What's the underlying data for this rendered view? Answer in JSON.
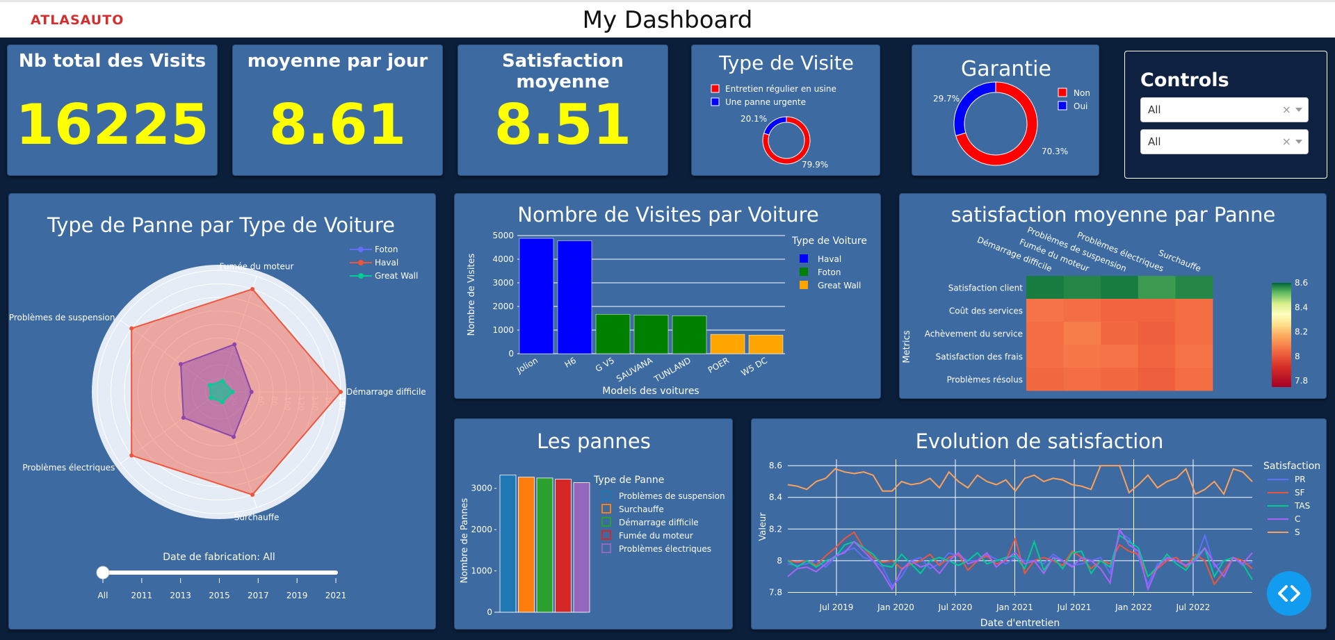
{
  "header": {
    "title": "My Dashboard",
    "logo_text": "ATLASAUTO"
  },
  "kpis": [
    {
      "title": "Nb total des Visits",
      "value": "16225"
    },
    {
      "title": "moyenne par jour",
      "value": "8.61"
    },
    {
      "title": "Satisfaction moyenne",
      "value": "8.51"
    }
  ],
  "type_visite": {
    "title": "Type de Visite",
    "legend": [
      "Entretien régulier en usine",
      "Une panne urgente"
    ],
    "values": [
      79.9,
      20.1
    ],
    "labels": [
      "79.9%",
      "20.1%"
    ],
    "colors": [
      "#ff0000",
      "#0000ff"
    ]
  },
  "garantie": {
    "title": "Garantie",
    "legend": [
      "Non",
      "Oui"
    ],
    "values": [
      70.3,
      29.7
    ],
    "labels": [
      "70.3%",
      "29.7%"
    ],
    "colors": [
      "#ff0000",
      "#0000ff"
    ]
  },
  "controls": {
    "title": "Controls",
    "select1": "All",
    "select2": "All",
    "clear": "×"
  },
  "radar": {
    "title": "Type de Panne par Type de Voiture",
    "axes": [
      "Démarrage difficile",
      "Fumée du moteur",
      "Problèmes de suspension",
      "Problèmes électriques",
      "Surchauffe"
    ],
    "ticks": [
      "0",
      "20",
      "40",
      "60",
      "80",
      "100",
      "120",
      "140",
      "160",
      "180"
    ],
    "max": 180,
    "series": [
      {
        "name": "Foton",
        "color": "#636efa",
        "values": [
          8,
          8,
          8,
          8,
          8
        ]
      },
      {
        "name": "Haval",
        "color": "#ef553b",
        "values": [
          180,
          160,
          160,
          160,
          160
        ]
      },
      {
        "name": "Great Wall",
        "color": "#00cc96",
        "values": [
          20,
          17,
          17,
          15,
          16
        ]
      }
    ],
    "purple_values": [
      48,
      74,
      70,
      65,
      70
    ],
    "slider_label": "Date de fabrication: All",
    "slider_ticks": [
      "All",
      "2011",
      "2013",
      "2015",
      "2017",
      "2019",
      "2021"
    ]
  },
  "chart_data": [
    {
      "type": "bar",
      "title": "Nombre de Visites par Voiture",
      "xlabel": "Models des voitures",
      "ylabel": "Nombre de Visites",
      "ylim": [
        0,
        5000
      ],
      "yticks": [
        "0",
        "1000",
        "2000",
        "3000",
        "4000",
        "5000"
      ],
      "legend_title": "Type de Voiture",
      "categories": [
        "Jolion",
        "H6",
        "G V5",
        "SAUVANA",
        "TUNLAND",
        "POER",
        "W5 DC"
      ],
      "values": [
        4880,
        4780,
        1670,
        1640,
        1610,
        820,
        790
      ],
      "groups": [
        "Haval",
        "Haval",
        "Great Wall",
        "Foton",
        "Foton",
        "Great Wall",
        "Great Wall"
      ],
      "series": [
        {
          "name": "Haval",
          "color": "#0000ff"
        },
        {
          "name": "Foton",
          "color": "#008000"
        },
        {
          "name": "Great Wall",
          "color": "#ffa500"
        }
      ],
      "bar_colors": [
        "#0000ff",
        "#0000ff",
        "#008000",
        "#008000",
        "#008000",
        "#ffa500",
        "#ffa500"
      ]
    },
    {
      "type": "heatmap",
      "title": "satisfaction moyenne par Panne",
      "ylabel": "Metrics",
      "columns": [
        "Démarrage difficile",
        "Fumée du moteur",
        "Problèmes de suspension",
        "Problèmes électriques",
        "Surchauffe"
      ],
      "rows": [
        "Satisfaction client",
        "Coût des services",
        "Achèvement du service",
        "Satisfaction des frais",
        "Problèmes résolus"
      ],
      "values": [
        [
          8.58,
          8.57,
          8.58,
          8.55,
          8.57
        ],
        [
          8.06,
          8.05,
          8.03,
          8.03,
          8.05
        ],
        [
          8.05,
          8.08,
          8.04,
          8.02,
          8.05
        ],
        [
          8.05,
          8.07,
          8.06,
          8.03,
          8.06
        ],
        [
          8.04,
          8.05,
          8.04,
          8.02,
          8.05
        ]
      ],
      "colorbar_ticks": [
        "8.6",
        "8.4",
        "8.2",
        "8",
        "7.8"
      ],
      "zmin": 7.75,
      "zmax": 8.6
    },
    {
      "type": "bar",
      "title": "Les pannes",
      "ylabel": "Nombre de Pannes",
      "ylim": [
        0,
        3500
      ],
      "yticks": [
        "0",
        "1000",
        "2000",
        "3000"
      ],
      "legend_title": "Type de Panne",
      "categories": [
        "Problèmes de suspension",
        "Surchauffe",
        "Démarrage difficile",
        "Fumée du moteur",
        "Problèmes électriques"
      ],
      "values": [
        3320,
        3270,
        3250,
        3220,
        3140
      ],
      "colors": [
        "#1f77b4",
        "#ff7f0e",
        "#2ca02c",
        "#d62728",
        "#9467bd"
      ]
    },
    {
      "type": "line",
      "title": "Evolution de satisfaction",
      "xlabel": "Date d'entretien",
      "ylabel": "Valeur",
      "ylim": [
        7.78,
        8.64
      ],
      "yticks": [
        "7.8",
        "8",
        "8.2",
        "8.4",
        "8.6"
      ],
      "xticks": [
        "Jul 2019",
        "Jan 2020",
        "Jul 2020",
        "Jan 2021",
        "Jul 2021",
        "Jan 2022",
        "Jul 2022"
      ],
      "legend_title": "Satisfaction",
      "series": [
        {
          "name": "PR",
          "color": "#636efa",
          "values": [
            7.98,
            7.97,
            7.98,
            8.0,
            7.96,
            8.02,
            8.06,
            8.08,
            8.02,
            8.0,
            7.96,
            7.84,
            7.9,
            8.0,
            8.02,
            7.95,
            7.98,
            8.05,
            8.03,
            8.0,
            8.0,
            8.04,
            8.01,
            7.98,
            8.02,
            8.0,
            8.0,
            7.98,
            8.04,
            8.0,
            7.97,
            7.98,
            8.0,
            8.02,
            7.92,
            8.18,
            8.14,
            8.02,
            7.85,
            7.98,
            8.01,
            8.02,
            7.96,
            8.0,
            8.16,
            7.96,
            8.0,
            8.02,
            7.97,
            7.99
          ]
        },
        {
          "name": "SF",
          "color": "#ef553b",
          "values": [
            8.0,
            7.99,
            8.0,
            7.97,
            8.03,
            8.08,
            8.14,
            8.18,
            8.08,
            8.02,
            7.99,
            8.0,
            7.95,
            7.98,
            8.0,
            8.04,
            7.97,
            8.02,
            8.04,
            7.94,
            8.0,
            8.03,
            7.98,
            8.0,
            8.14,
            7.92,
            8.0,
            8.02,
            8.0,
            7.97,
            8.06,
            8.02,
            7.95,
            8.0,
            7.98,
            8.1,
            8.06,
            8.04,
            7.9,
            7.95,
            8.0,
            8.02,
            7.96,
            8.04,
            8.0,
            7.85,
            7.93,
            8.02,
            8.0,
            7.95
          ]
        },
        {
          "name": "TAS",
          "color": "#00cc96",
          "values": [
            8.0,
            7.96,
            8.0,
            7.96,
            8.0,
            8.02,
            8.1,
            8.12,
            8.08,
            8.04,
            7.97,
            7.96,
            8.04,
            7.98,
            7.92,
            8.0,
            8.02,
            8.0,
            7.97,
            8.0,
            8.05,
            7.98,
            8.0,
            8.02,
            8.03,
            7.95,
            8.12,
            7.94,
            8.02,
            7.95,
            8.05,
            8.06,
            7.92,
            8.0,
            7.96,
            8.16,
            8.12,
            8.08,
            7.9,
            7.96,
            8.04,
            7.98,
            7.94,
            8.02,
            8.08,
            7.9,
            8.0,
            8.02,
            7.98,
            7.88
          ]
        },
        {
          "name": "C",
          "color": "#ab63fa",
          "values": [
            7.9,
            7.95,
            7.96,
            7.93,
            7.98,
            8.03,
            8.05,
            8.12,
            8.06,
            8.0,
            7.92,
            7.82,
            7.94,
            8.0,
            7.96,
            7.98,
            7.92,
            8.0,
            8.05,
            7.98,
            8.0,
            8.05,
            7.96,
            8.01,
            8.05,
            7.98,
            8.0,
            7.92,
            8.02,
            8.0,
            7.96,
            8.02,
            8.0,
            7.95,
            7.86,
            8.2,
            8.1,
            8.06,
            7.82,
            7.96,
            8.02,
            8.0,
            7.97,
            8.0,
            8.08,
            7.98,
            7.9,
            8.02,
            7.98,
            8.05
          ]
        },
        {
          "name": "S",
          "color": "#ffa15a",
          "values": [
            8.48,
            8.47,
            8.45,
            8.5,
            8.52,
            8.58,
            8.56,
            8.55,
            8.56,
            8.54,
            8.44,
            8.44,
            8.5,
            8.48,
            8.49,
            8.52,
            8.46,
            8.56,
            8.5,
            8.46,
            8.54,
            8.5,
            8.48,
            8.51,
            8.44,
            8.52,
            8.54,
            8.5,
            8.52,
            8.51,
            8.48,
            8.47,
            8.45,
            8.6,
            8.6,
            8.6,
            8.43,
            8.48,
            8.54,
            8.46,
            8.5,
            8.52,
            8.58,
            8.42,
            8.45,
            8.5,
            8.42,
            8.58,
            8.56,
            8.5
          ]
        }
      ]
    }
  ]
}
